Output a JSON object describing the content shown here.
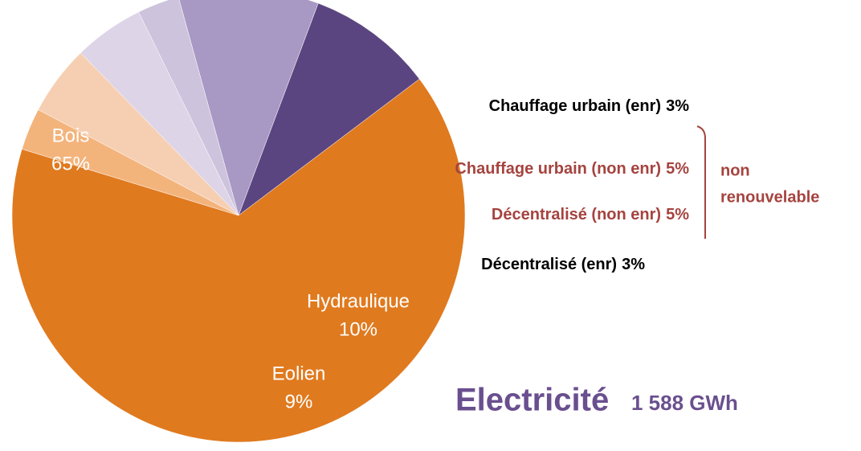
{
  "chart_data": {
    "type": "pie",
    "title": "Electricité",
    "subtitle": "1 588 GWh",
    "categories": [
      "Bois",
      "Chauffage urbain (enr)",
      "Chauffage urbain (non enr)",
      "Décentralisé (non enr)",
      "Décentralisé (enr)",
      "Hydraulique",
      "Eolien"
    ],
    "values": [
      65,
      3,
      5,
      5,
      3,
      10,
      9
    ],
    "value_labels": [
      "65%",
      "3%",
      "5%",
      "5%",
      "3%",
      "10%",
      "9%"
    ],
    "colors": [
      "#e07a1f",
      "#f3b47c",
      "#f6cfb3",
      "#ddd4e7",
      "#cec3dd",
      "#a898c4",
      "#5b4580"
    ],
    "annotation": [
      "non",
      "renouvelable"
    ]
  }
}
